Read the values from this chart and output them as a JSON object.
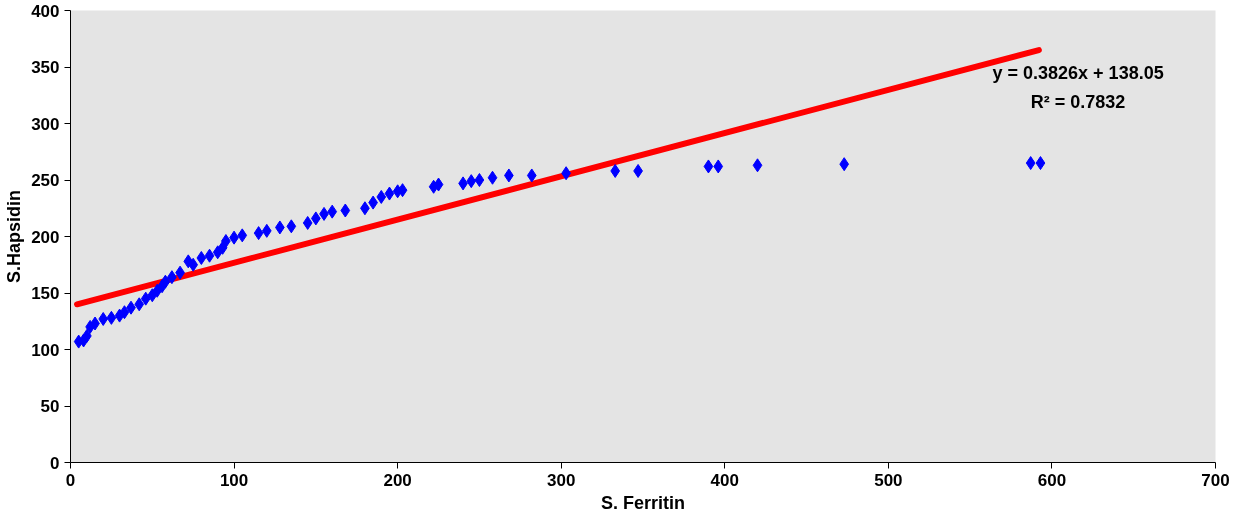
{
  "chart_data": {
    "type": "scatter",
    "xlabel": "S. Ferritin",
    "ylabel": "S.Hapsidin",
    "xlim": [
      0,
      700
    ],
    "ylim": [
      0,
      400
    ],
    "xticks": [
      0,
      100,
      200,
      300,
      400,
      500,
      600,
      700
    ],
    "yticks": [
      0,
      50,
      100,
      150,
      200,
      250,
      300,
      350,
      400
    ],
    "marker": "diamond",
    "annotations": [
      "y = 0.3826x + 138.05",
      "R² = 0.7832"
    ],
    "series": [
      {
        "color": "#0000ff",
        "x": [
          5,
          8,
          10,
          12,
          15,
          20,
          25,
          30,
          33,
          37,
          42,
          46,
          50,
          53,
          56,
          58,
          62,
          67,
          72,
          75,
          80,
          85,
          90,
          93,
          95,
          100,
          105,
          115,
          120,
          128,
          135,
          145,
          150,
          155,
          160,
          168,
          180,
          185,
          190,
          195,
          200,
          203,
          222,
          225,
          240,
          245,
          250,
          258,
          268,
          282,
          303,
          333,
          347,
          390,
          396,
          420,
          473,
          587,
          593
        ],
        "values": [
          107,
          108,
          112,
          120,
          123,
          127,
          128,
          130,
          133,
          137,
          140,
          145,
          148,
          152,
          156,
          160,
          164,
          168,
          178,
          175,
          181,
          183,
          186,
          190,
          196,
          199,
          201,
          203,
          205,
          208,
          209,
          212,
          216,
          220,
          222,
          223,
          225,
          230,
          235,
          238,
          240,
          241,
          244,
          246,
          247,
          249,
          250,
          252,
          254,
          254,
          256,
          258,
          258,
          262,
          262,
          263,
          264,
          265,
          265
        ]
      },
      {
        "type": "line",
        "marker": "none",
        "color": "#ff0000",
        "x": [
          4,
          592
        ],
        "values": [
          140,
          365
        ]
      }
    ]
  }
}
